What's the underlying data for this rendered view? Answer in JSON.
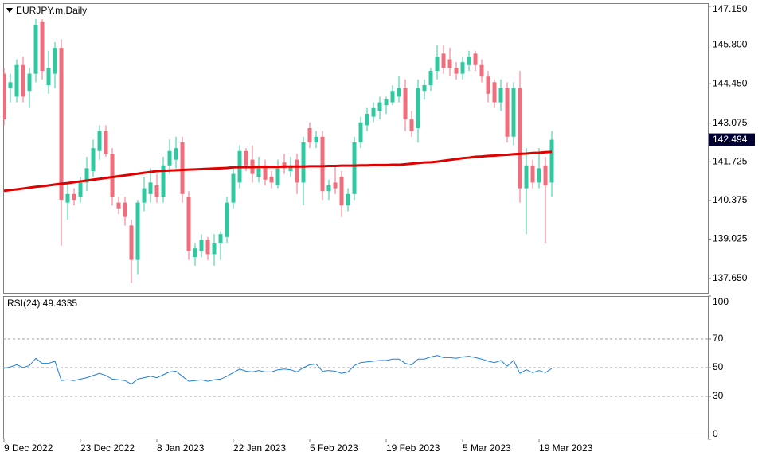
{
  "chart_data": [
    {
      "type": "candlestick",
      "title": "EURJPY.m,Daily",
      "categories": [
        "9 Dec 2022",
        null,
        null,
        null,
        null,
        null,
        null,
        null,
        null,
        null,
        null,
        null,
        "23 Dec 2022",
        null,
        null,
        null,
        null,
        null,
        null,
        null,
        null,
        null,
        null,
        null,
        "8 Jan 2023",
        null,
        null,
        null,
        null,
        null,
        null,
        null,
        null,
        null,
        null,
        null,
        "22 Jan 2023",
        null,
        null,
        null,
        null,
        null,
        null,
        null,
        null,
        null,
        null,
        null,
        "5 Feb 2023",
        null,
        null,
        null,
        null,
        null,
        null,
        null,
        null,
        null,
        null,
        null,
        "19 Feb 2023",
        null,
        null,
        null,
        null,
        null,
        null,
        null,
        null,
        null,
        null,
        null,
        "5 Mar 2023",
        null,
        null,
        null,
        null,
        null,
        null,
        null,
        null,
        null,
        null,
        null,
        "19 Mar 2023",
        null,
        null
      ],
      "open": [
        144.8,
        144.3,
        144.0,
        145.1,
        144.2,
        144.8,
        146.6,
        144.4,
        144.8,
        145.7,
        140.3,
        140.6,
        140.5,
        141.0,
        141.4,
        142.1,
        142.8,
        142.0,
        140.3,
        140.3,
        139.5,
        138.3,
        140.3,
        140.6,
        140.9,
        140.5,
        141.6,
        141.8,
        142.4,
        140.5,
        138.4,
        138.6,
        139.0,
        138.5,
        138.9,
        139.1,
        140.3,
        141.0,
        142.1,
        141.8,
        141.2,
        141.6,
        141.2,
        140.9,
        141.7,
        141.4,
        141.8,
        141.0,
        142.9,
        142.4,
        142.6,
        140.7,
        141.0,
        141.2,
        140.2,
        140.6,
        142.4,
        143.0,
        143.3,
        143.5,
        143.7,
        143.8,
        144.0,
        144.3,
        143.2,
        142.9,
        144.2,
        144.4,
        144.9,
        145.5,
        145.3,
        145.0,
        144.8,
        145.1,
        145.5,
        145.1,
        144.7,
        144.5,
        143.8,
        144.3,
        142.6,
        144.3,
        140.8,
        141.6,
        141.0,
        141.6,
        141.0
      ],
      "high": [
        145.0,
        144.8,
        145.3,
        145.4,
        145.0,
        146.7,
        146.7,
        145.6,
        145.9,
        146.0,
        141.0,
        140.8,
        141.2,
        141.9,
        142.5,
        143.0,
        143.0,
        142.2,
        140.5,
        140.5,
        139.7,
        140.4,
        141.2,
        141.5,
        141.3,
        141.9,
        142.5,
        142.6,
        142.6,
        140.7,
        138.9,
        139.2,
        139.1,
        139.2,
        139.3,
        140.5,
        141.5,
        142.3,
        142.2,
        142.3,
        141.9,
        141.8,
        141.4,
        141.8,
        142.0,
        141.9,
        142.0,
        142.6,
        143.1,
        142.8,
        142.8,
        141.1,
        141.6,
        141.4,
        140.8,
        142.6,
        143.3,
        143.6,
        143.8,
        144.0,
        144.0,
        144.4,
        144.7,
        144.6,
        143.5,
        144.6,
        144.6,
        145.0,
        145.8,
        145.8,
        145.7,
        145.2,
        145.4,
        145.6,
        145.6,
        145.3,
        144.9,
        144.6,
        144.6,
        144.5,
        144.5,
        144.9,
        142.2,
        141.8,
        142.2,
        141.9,
        142.8
      ],
      "low": [
        143.0,
        143.8,
        143.8,
        143.8,
        143.6,
        144.5,
        144.6,
        144.1,
        144.3,
        138.8,
        139.7,
        140.2,
        140.3,
        140.7,
        141.2,
        141.8,
        141.9,
        140.2,
        139.9,
        139.5,
        137.5,
        137.8,
        140.0,
        140.3,
        140.3,
        140.3,
        141.3,
        141.5,
        140.3,
        138.3,
        138.1,
        138.4,
        138.3,
        138.1,
        138.3,
        138.9,
        140.1,
        140.8,
        141.4,
        141.0,
        141.0,
        140.9,
        140.8,
        140.8,
        141.3,
        141.2,
        140.6,
        140.2,
        142.2,
        142.2,
        140.4,
        140.4,
        140.6,
        139.8,
        140.0,
        140.4,
        142.2,
        142.8,
        143.1,
        143.2,
        143.4,
        143.7,
        143.8,
        142.8,
        142.6,
        142.4,
        143.9,
        144.2,
        144.6,
        144.8,
        144.7,
        144.6,
        144.6,
        144.9,
        144.9,
        144.5,
        143.8,
        143.6,
        143.5,
        142.4,
        142.3,
        140.3,
        139.2,
        140.8,
        140.8,
        138.9,
        140.5
      ],
      "close": [
        143.2,
        144.5,
        145.1,
        144.0,
        144.8,
        146.5,
        144.9,
        145.0,
        145.7,
        140.4,
        140.6,
        140.4,
        141.0,
        141.5,
        142.2,
        142.8,
        142.0,
        140.5,
        140.1,
        139.8,
        138.3,
        140.3,
        140.8,
        141.0,
        140.5,
        141.6,
        142.1,
        142.2,
        140.6,
        138.6,
        138.7,
        139.0,
        138.5,
        138.9,
        139.2,
        140.3,
        141.3,
        142.1,
        141.6,
        141.3,
        141.6,
        141.1,
        141.0,
        141.5,
        141.5,
        141.6,
        141.0,
        142.4,
        142.4,
        142.6,
        140.7,
        140.9,
        140.8,
        140.2,
        140.6,
        142.4,
        143.1,
        143.4,
        143.6,
        143.8,
        143.9,
        144.2,
        144.3,
        143.2,
        142.8,
        144.3,
        144.4,
        144.9,
        145.4,
        145.0,
        145.0,
        144.8,
        145.2,
        145.4,
        145.1,
        144.7,
        144.1,
        143.8,
        144.3,
        142.6,
        144.3,
        140.8,
        141.6,
        141.0,
        141.5,
        140.9,
        142.494
      ],
      "up_color": "#30c8a0",
      "down_color": "#f06e7c",
      "overlays": [
        {
          "color": "#e00000",
          "values": [
            140.71,
            140.74,
            140.76,
            140.79,
            140.82,
            140.85,
            140.87,
            140.9,
            140.93,
            140.96,
            140.98,
            141.01,
            141.04,
            141.07,
            141.1,
            141.13,
            141.16,
            141.19,
            141.22,
            141.25,
            141.28,
            141.31,
            141.34,
            141.37,
            141.4,
            141.41,
            141.42,
            141.43,
            141.44,
            141.45,
            141.46,
            141.47,
            141.48,
            141.49,
            141.5,
            141.51,
            141.53,
            141.54,
            141.54,
            141.54,
            141.55,
            141.55,
            141.55,
            141.55,
            141.56,
            141.56,
            141.56,
            141.56,
            141.57,
            141.57,
            141.57,
            141.58,
            141.58,
            141.59,
            141.59,
            141.59,
            141.6,
            141.6,
            141.61,
            141.61,
            141.61,
            141.62,
            141.62,
            141.64,
            141.66,
            141.68,
            141.7,
            141.71,
            141.73,
            141.76,
            141.79,
            141.82,
            141.85,
            141.87,
            141.9,
            141.91,
            141.93,
            141.94,
            141.96,
            141.97,
            141.99,
            142.0,
            142.01,
            142.03,
            142.04,
            142.06,
            142.07
          ]
        }
      ],
      "ylim": [
        137.15,
        147.26
      ],
      "yticks": [
        {
          "value": 137.65,
          "label": "137.650"
        },
        139.025,
        140.375,
        141.725,
        143.075,
        {
          "value": 144.45,
          "label": "144.450"
        },
        {
          "value": 145.8,
          "label": "145.800"
        },
        {
          "value": 147.15,
          "label": "147.150"
        }
      ]
    },
    {
      "type": "line",
      "title": "RSI(24) 49.4335",
      "color": "#1e7fe0",
      "values": [
        49.5,
        50.5,
        52,
        50,
        51.5,
        56.5,
        53,
        53,
        54.5,
        41,
        41.5,
        41,
        42,
        43,
        44.5,
        46,
        44.5,
        42,
        41.5,
        41,
        38.5,
        42,
        43,
        44,
        43,
        45,
        47,
        47.5,
        44,
        40.5,
        41,
        41.5,
        40.5,
        41.5,
        42,
        44,
        46.5,
        49,
        47.5,
        47,
        48,
        47,
        47,
        48.5,
        49,
        48.5,
        47,
        50,
        52,
        52.5,
        47.5,
        48,
        47.5,
        46,
        47,
        51.5,
        53.5,
        54,
        54.5,
        55,
        55,
        56,
        56,
        53,
        52,
        56,
        56,
        57.5,
        58.5,
        57,
        57,
        56.5,
        57.5,
        58,
        57,
        56,
        54.5,
        53.5,
        55,
        51,
        55,
        46,
        48.5,
        46.5,
        48,
        46.5,
        49.4335
      ],
      "ylim": [
        0,
        100
      ],
      "yticks": [
        0,
        30,
        50,
        70,
        100
      ],
      "levels": [
        30,
        50,
        70
      ]
    }
  ]
}
